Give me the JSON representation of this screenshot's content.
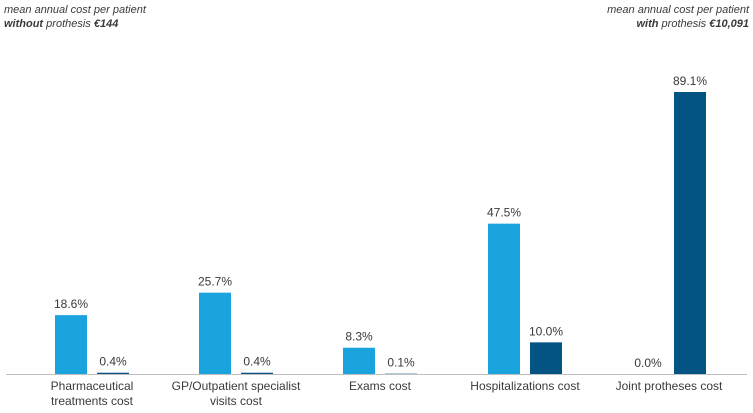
{
  "notes": {
    "left": {
      "line1": "mean annual cost per patient",
      "line2_bold": "without",
      "line2_rest": " prothesis ",
      "line2_value": "€144"
    },
    "right": {
      "line1": "mean annual cost per patient",
      "line2_bold": "with",
      "line2_rest": " prothesis ",
      "line2_value": "€10,091"
    }
  },
  "colors": {
    "without": "#1aa3dd",
    "with": "#035383",
    "axis": "#bfbfbf"
  },
  "chart_data": {
    "type": "bar",
    "categories": [
      [
        "Pharmaceutical",
        "treatments cost"
      ],
      [
        "GP/Outpatient specialist",
        "visits cost"
      ],
      [
        "Exams cost"
      ],
      [
        "Hospitalizations cost"
      ],
      [
        "Joint protheses cost"
      ]
    ],
    "series": [
      {
        "values": [
          18.6,
          25.7,
          8.3,
          47.5,
          0.0
        ],
        "labels": [
          "18.6%",
          "25.7%",
          "8.3%",
          "47.5%",
          "0.0%"
        ]
      },
      {
        "values": [
          0.4,
          0.4,
          0.1,
          10.0,
          89.1
        ],
        "labels": [
          "0.4%",
          "0.4%",
          "0.1%",
          "10.0%",
          "89.1%"
        ]
      }
    ],
    "ylim": [
      0,
      89.1
    ],
    "grid": false,
    "legend": "none"
  }
}
